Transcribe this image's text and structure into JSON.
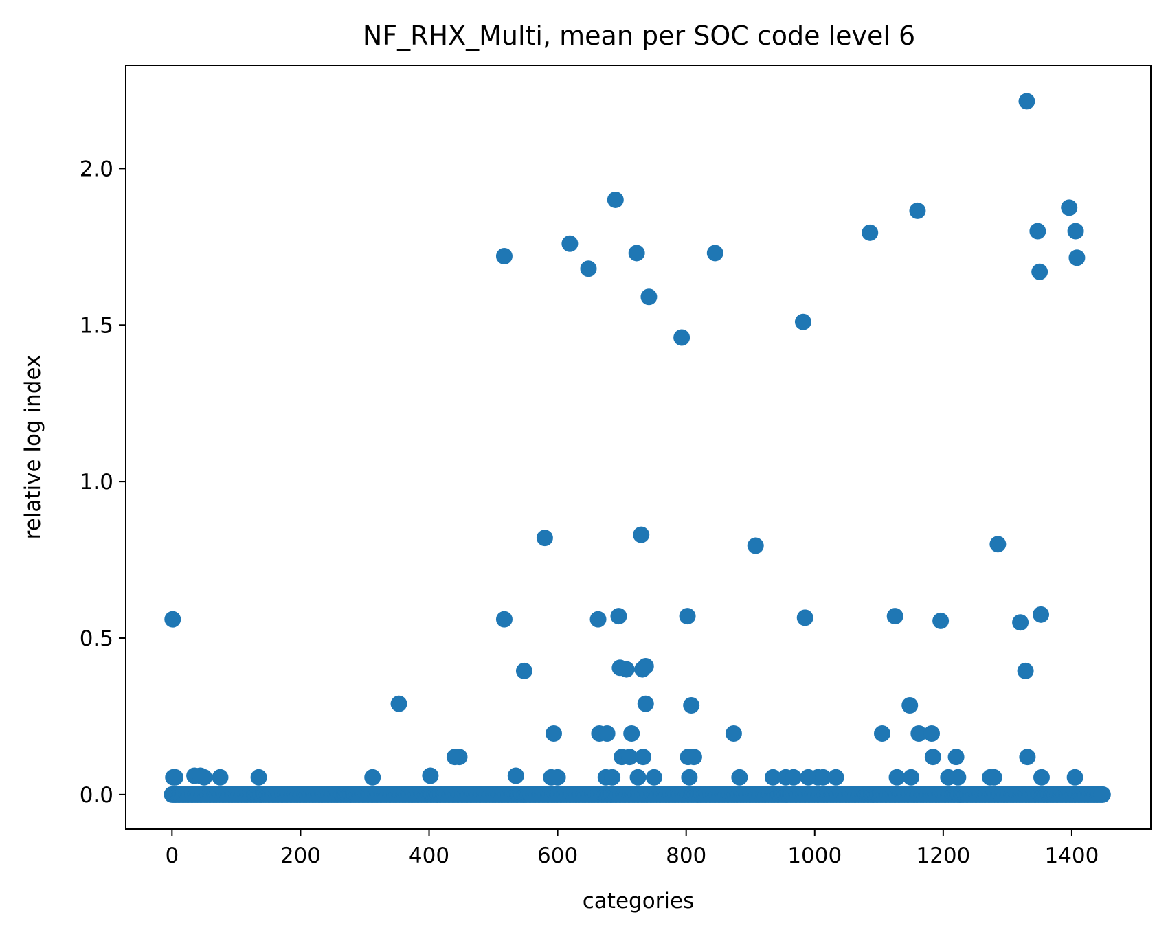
{
  "chart_data": {
    "type": "scatter",
    "title": "NF_RHX_Multi, mean per SOC code level 6",
    "xlabel": "categories",
    "ylabel": "relative log index",
    "xlim": [
      -72,
      1523
    ],
    "ylim": [
      -0.11,
      2.33
    ],
    "xticks": [
      0,
      200,
      400,
      600,
      800,
      1000,
      1200,
      1400
    ],
    "xtick_labels": [
      "0",
      "200",
      "400",
      "600",
      "800",
      "1000",
      "1200",
      "1400"
    ],
    "yticks": [
      0.0,
      0.5,
      1.0,
      1.5,
      2.0
    ],
    "ytick_labels": [
      "0.0",
      "0.5",
      "1.0",
      "1.5",
      "2.0"
    ],
    "grid": false,
    "legend": "none",
    "marker_color": "#1f77b4",
    "baseline": {
      "y": 0.0,
      "x_from": 0,
      "x_to": 1449,
      "step": 2
    },
    "series": [
      {
        "points": [
          [
            1,
            0.56
          ],
          [
            2,
            0.055
          ],
          [
            5,
            0.055
          ],
          [
            35,
            0.06
          ],
          [
            44,
            0.06
          ],
          [
            50,
            0.055
          ],
          [
            75,
            0.055
          ],
          [
            135,
            0.055
          ],
          [
            312,
            0.055
          ],
          [
            353,
            0.29
          ],
          [
            402,
            0.06
          ],
          [
            440,
            0.12
          ],
          [
            447,
            0.12
          ],
          [
            517,
            1.72
          ],
          [
            517,
            0.56
          ],
          [
            535,
            0.06
          ],
          [
            548,
            0.395
          ],
          [
            580,
            0.82
          ],
          [
            590,
            0.055
          ],
          [
            594,
            0.195
          ],
          [
            600,
            0.055
          ],
          [
            619,
            1.76
          ],
          [
            648,
            1.68
          ],
          [
            663,
            0.56
          ],
          [
            665,
            0.195
          ],
          [
            675,
            0.055
          ],
          [
            677,
            0.195
          ],
          [
            685,
            0.055
          ],
          [
            690,
            1.9
          ],
          [
            695,
            0.57
          ],
          [
            697,
            0.405
          ],
          [
            700,
            0.12
          ],
          [
            707,
            0.4
          ],
          [
            712,
            0.12
          ],
          [
            715,
            0.195
          ],
          [
            723,
            1.73
          ],
          [
            725,
            0.055
          ],
          [
            730,
            0.83
          ],
          [
            732,
            0.4
          ],
          [
            733,
            0.12
          ],
          [
            737,
            0.41
          ],
          [
            737,
            0.29
          ],
          [
            742,
            1.59
          ],
          [
            750,
            0.055
          ],
          [
            793,
            1.46
          ],
          [
            802,
            0.57
          ],
          [
            803,
            0.12
          ],
          [
            805,
            0.055
          ],
          [
            808,
            0.285
          ],
          [
            812,
            0.12
          ],
          [
            845,
            1.73
          ],
          [
            874,
            0.195
          ],
          [
            883,
            0.055
          ],
          [
            908,
            0.795
          ],
          [
            935,
            0.055
          ],
          [
            955,
            0.055
          ],
          [
            967,
            0.055
          ],
          [
            982,
            1.51
          ],
          [
            985,
            0.565
          ],
          [
            990,
            0.055
          ],
          [
            1005,
            0.055
          ],
          [
            1013,
            0.055
          ],
          [
            1033,
            0.055
          ],
          [
            1086,
            1.795
          ],
          [
            1105,
            0.195
          ],
          [
            1125,
            0.57
          ],
          [
            1128,
            0.055
          ],
          [
            1148,
            0.285
          ],
          [
            1150,
            0.055
          ],
          [
            1160,
            1.865
          ],
          [
            1162,
            0.195
          ],
          [
            1182,
            0.195
          ],
          [
            1184,
            0.12
          ],
          [
            1196,
            0.555
          ],
          [
            1208,
            0.055
          ],
          [
            1220,
            0.12
          ],
          [
            1223,
            0.055
          ],
          [
            1273,
            0.055
          ],
          [
            1279,
            0.055
          ],
          [
            1285,
            0.8
          ],
          [
            1320,
            0.55
          ],
          [
            1328,
            0.395
          ],
          [
            1330,
            2.215
          ],
          [
            1331,
            0.12
          ],
          [
            1347,
            1.8
          ],
          [
            1350,
            1.67
          ],
          [
            1352,
            0.575
          ],
          [
            1353,
            0.055
          ],
          [
            1396,
            1.875
          ],
          [
            1405,
            0.055
          ],
          [
            1406,
            1.8
          ],
          [
            1408,
            1.715
          ]
        ]
      }
    ]
  }
}
